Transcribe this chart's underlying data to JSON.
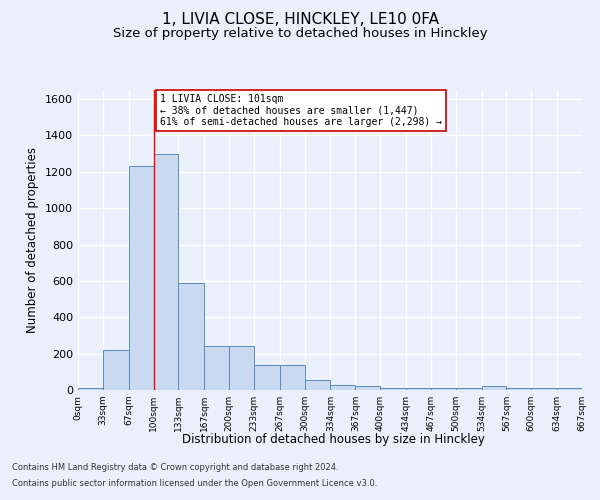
{
  "title": "1, LIVIA CLOSE, HINCKLEY, LE10 0FA",
  "subtitle": "Size of property relative to detached houses in Hinckley",
  "xlabel": "Distribution of detached houses by size in Hinckley",
  "ylabel": "Number of detached properties",
  "footnote1": "Contains HM Land Registry data © Crown copyright and database right 2024.",
  "footnote2": "Contains public sector information licensed under the Open Government Licence v3.0.",
  "annotation_line1": "1 LIVIA CLOSE: 101sqm",
  "annotation_line2": "← 38% of detached houses are smaller (1,447)",
  "annotation_line3": "61% of semi-detached houses are larger (2,298) →",
  "property_size": 101,
  "bar_edges": [
    0,
    33,
    67,
    100,
    133,
    167,
    200,
    233,
    267,
    300,
    334,
    367,
    400,
    434,
    467,
    500,
    534,
    567,
    600,
    634,
    667
  ],
  "bar_heights": [
    10,
    220,
    1230,
    1300,
    590,
    240,
    240,
    140,
    140,
    55,
    28,
    22,
    10,
    10,
    10,
    10,
    20,
    10,
    10,
    10
  ],
  "bar_color": "#c9d9ef",
  "bar_edge_color": "#5a8abf",
  "red_line_x": 101,
  "ylim": [
    0,
    1650
  ],
  "yticks": [
    0,
    200,
    400,
    600,
    800,
    1000,
    1200,
    1400,
    1600
  ],
  "bg_color": "#eaf0fb",
  "grid_color": "#ffffff",
  "annotation_box_color": "#ffffff",
  "annotation_box_edge": "#cc0000",
  "title_fontsize": 11,
  "subtitle_fontsize": 9.5
}
